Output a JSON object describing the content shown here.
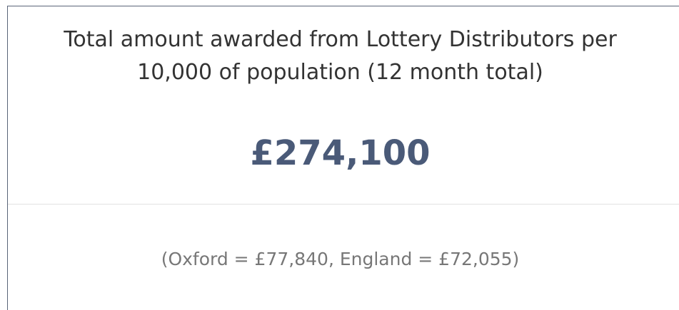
{
  "card": {
    "title": "Total amount awarded from Lottery Distributors per 10,000 of population (12 month total)",
    "value": "£274,100",
    "comparison": "(Oxford = £77,840, England = £72,055)"
  }
}
